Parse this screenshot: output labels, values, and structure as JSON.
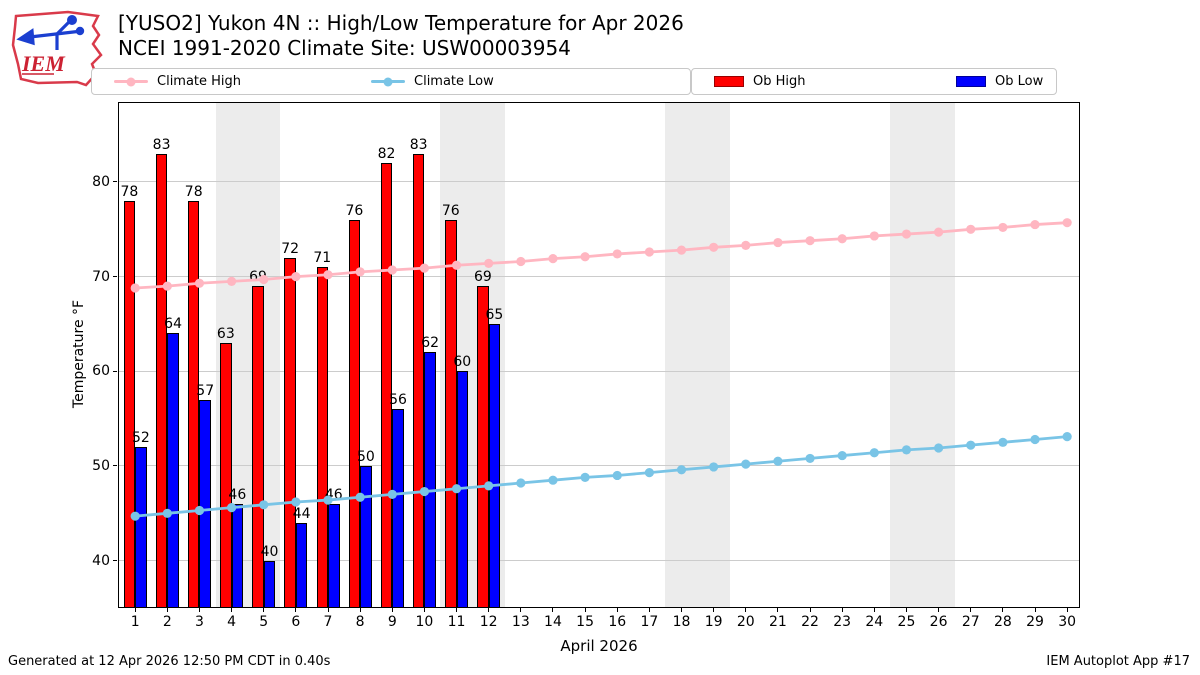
{
  "header": {
    "title_line1": "[YUSO2] Yukon 4N :: High/Low Temperature for Apr 2026",
    "title_line2": "NCEI 1991-2020 Climate Site: USW00003954",
    "logo_text": "IEM"
  },
  "legend": [
    {
      "label": "Climate High",
      "type": "line",
      "color": "#ffb6c1"
    },
    {
      "label": "Climate Low",
      "type": "line",
      "color": "#79c4e6"
    },
    {
      "label": "Ob High",
      "type": "rect",
      "color": "#ff0000",
      "edge": "#990000"
    },
    {
      "label": "Ob Low",
      "type": "rect",
      "color": "#0000ff",
      "edge": "#000099"
    }
  ],
  "chart_data": {
    "type": "bar",
    "title": "[YUSO2] Yukon 4N :: High/Low Temperature for Apr 2026",
    "subtitle": "NCEI 1991-2020 Climate Site: USW00003954",
    "xlabel": "April 2026",
    "ylabel": "Temperature °F",
    "x": [
      1,
      2,
      3,
      4,
      5,
      6,
      7,
      8,
      9,
      10,
      11,
      12,
      13,
      14,
      15,
      16,
      17,
      18,
      19,
      20,
      21,
      22,
      23,
      24,
      25,
      26,
      27,
      28,
      29,
      30
    ],
    "series": [
      {
        "name": "Climate High",
        "type": "line",
        "color": "#ffb6c1",
        "values": [
          68.8,
          69.0,
          69.3,
          69.5,
          69.7,
          70.0,
          70.2,
          70.5,
          70.7,
          70.9,
          71.2,
          71.4,
          71.6,
          71.9,
          72.1,
          72.4,
          72.6,
          72.8,
          73.1,
          73.3,
          73.6,
          73.8,
          74.0,
          74.3,
          74.5,
          74.7,
          75.0,
          75.2,
          75.5,
          75.7
        ]
      },
      {
        "name": "Climate Low",
        "type": "line",
        "color": "#79c4e6",
        "values": [
          44.7,
          45.0,
          45.3,
          45.6,
          45.9,
          46.2,
          46.4,
          46.7,
          47.0,
          47.3,
          47.6,
          47.9,
          48.2,
          48.5,
          48.8,
          49.0,
          49.3,
          49.6,
          49.9,
          50.2,
          50.5,
          50.8,
          51.1,
          51.4,
          51.7,
          51.9,
          52.2,
          52.5,
          52.8,
          53.1
        ]
      },
      {
        "name": "Ob High",
        "type": "bar",
        "color": "#ff0000",
        "values": [
          78,
          83,
          78,
          63,
          69,
          72,
          71,
          76,
          82,
          83,
          76,
          69
        ]
      },
      {
        "name": "Ob Low",
        "type": "bar",
        "color": "#0000ff",
        "values": [
          52,
          64,
          57,
          46,
          40,
          44,
          46,
          50,
          56,
          62,
          60,
          65
        ]
      }
    ],
    "yticks": [
      40,
      50,
      60,
      70,
      80
    ],
    "ylim": [
      35.0,
      88.5
    ],
    "xlim": [
      0.465,
      30.4
    ],
    "grid": "horizontal",
    "weekend_shading_days": [
      [
        4,
        5
      ],
      [
        11,
        12
      ],
      [
        18,
        19
      ],
      [
        25,
        26
      ]
    ],
    "legend_position": "top"
  },
  "footer": {
    "left": "Generated at 12 Apr 2026 12:50 PM CDT in 0.40s",
    "right": "IEM Autoplot App #17"
  }
}
